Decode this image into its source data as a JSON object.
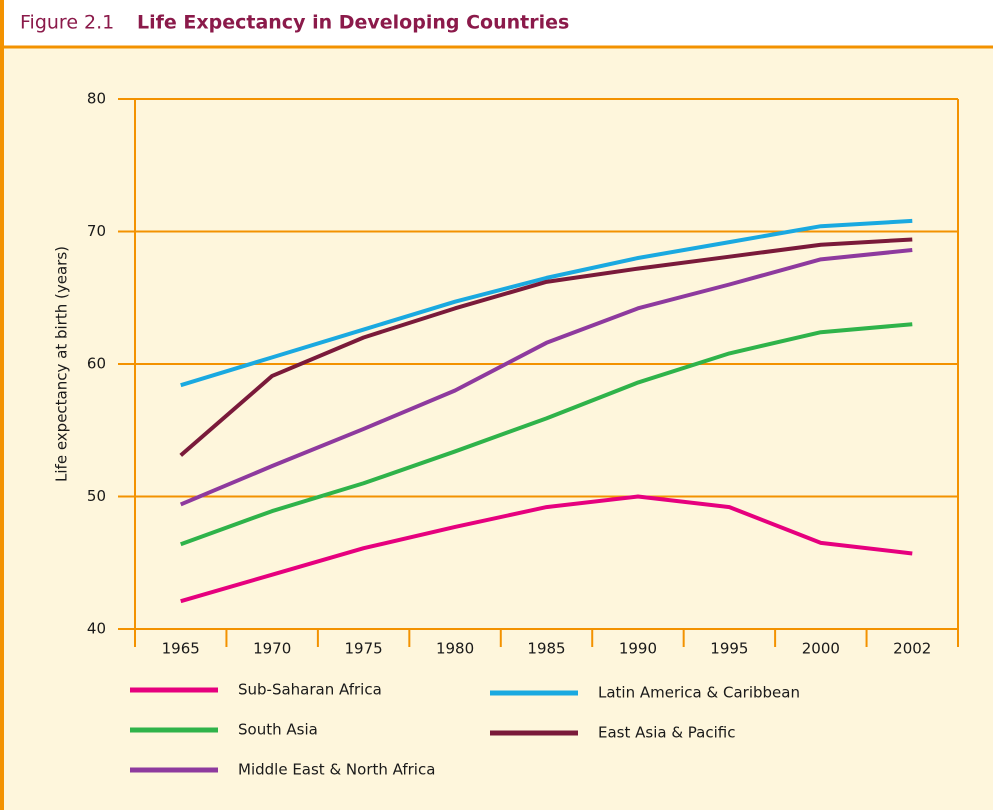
{
  "chart_data": {
    "type": "line",
    "figure_label": "Figure 2.1",
    "title": "Life Expectancy in Developing Countries",
    "y_label": "Life expectancy at birth (years)",
    "categories": [
      "1965",
      "1970",
      "1975",
      "1980",
      "1985",
      "1990",
      "1995",
      "2000",
      "2002"
    ],
    "ylim": [
      40,
      80
    ],
    "yticks": [
      40,
      50,
      60,
      70,
      80
    ],
    "grid": true,
    "series": [
      {
        "name": "Sub-Saharan Africa",
        "color": "#e6007e",
        "values": [
          42.1,
          44.1,
          46.1,
          47.7,
          49.2,
          50.0,
          49.2,
          46.5,
          45.7
        ]
      },
      {
        "name": "South Asia",
        "color": "#2fb34a",
        "values": [
          46.4,
          48.9,
          51.0,
          53.4,
          55.9,
          58.6,
          60.8,
          62.4,
          63.0
        ]
      },
      {
        "name": "Middle East & North Africa",
        "color": "#8e3a9e",
        "values": [
          49.4,
          52.3,
          55.1,
          58.0,
          61.6,
          64.2,
          66.0,
          67.9,
          68.6
        ]
      },
      {
        "name": "Latin America & Caribbean",
        "color": "#1aa9e0",
        "values": [
          58.4,
          60.5,
          62.6,
          64.7,
          66.5,
          68.0,
          69.2,
          70.4,
          70.8
        ]
      },
      {
        "name": "East Asia & Pacific",
        "color": "#7a1a3a",
        "values": [
          53.1,
          59.1,
          62.0,
          64.2,
          66.2,
          67.2,
          68.1,
          69.0,
          69.4
        ]
      }
    ]
  }
}
